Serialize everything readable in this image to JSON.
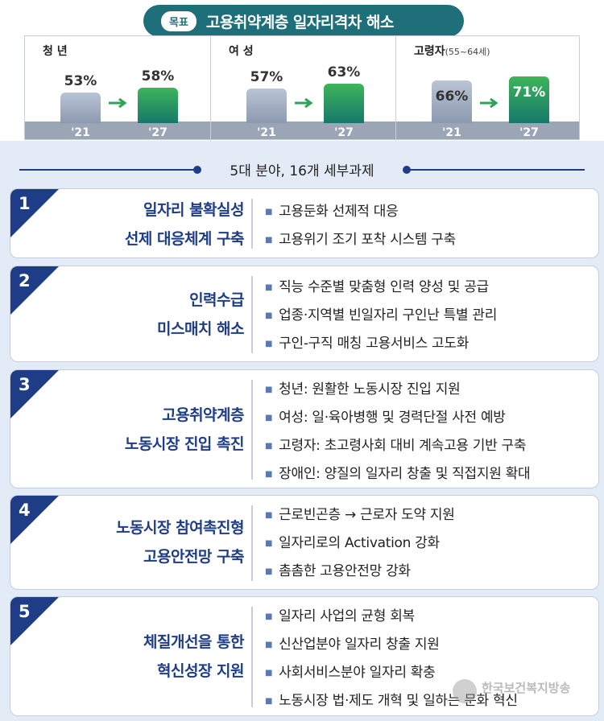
{
  "goal": {
    "tag": "목표",
    "title": "고용취약계층 일자리격차 해소"
  },
  "stats": [
    {
      "label": "청 년",
      "sublabel": "",
      "old_pct": "53%",
      "new_pct": "58%",
      "old_value": 53,
      "new_value": 58,
      "old_year": "'21",
      "new_year": "'27"
    },
    {
      "label": "여 성",
      "sublabel": "",
      "old_pct": "57%",
      "new_pct": "63%",
      "old_value": 57,
      "new_value": 63,
      "old_year": "'21",
      "new_year": "'27"
    },
    {
      "label": "고령자",
      "sublabel": "(55~64세)",
      "old_pct": "66%",
      "new_pct": "71%",
      "old_value": 66,
      "new_value": 71,
      "old_year": "'21",
      "new_year": "'27"
    }
  ],
  "subtitle": "5대 분야, 16개 세부과제",
  "cards": [
    {
      "num": "1",
      "title_lines": [
        "일자리 불확실성",
        "선제 대응체계 구축"
      ],
      "items": [
        "고용둔화 선제적 대응",
        "고용위기 조기 포착 시스템 구축"
      ]
    },
    {
      "num": "2",
      "title_lines": [
        "인력수급",
        "미스매치 해소"
      ],
      "items": [
        "직능 수준별 맞춤형 인력 양성 및 공급",
        "업종·지역별 빈일자리 구인난 특별 관리",
        "구인-구직 매칭 고용서비스 고도화"
      ]
    },
    {
      "num": "3",
      "title_lines": [
        "고용취약계층",
        "노동시장 진입 촉진"
      ],
      "items": [
        "청년: 원활한 노동시장 진입 지원",
        "여성: 일·육아병행 및 경력단절 사전 예방",
        "고령자: 초고령사회 대비 계속고용 기반 구축",
        "장애인: 양질의 일자리 창출 및 직접지원 확대"
      ]
    },
    {
      "num": "4",
      "title_lines": [
        "노동시장 참여촉진형",
        "고용안전망 구축"
      ],
      "items": [
        "근로빈곤층 → 근로자 도약 지원",
        "일자리로의 Activation 강화",
        "촘촘한 고용안전망 강화"
      ]
    },
    {
      "num": "5",
      "title_lines": [
        "체질개선을 통한",
        "혁신성장 지원"
      ],
      "items": [
        "일자리 사업의 균형 회복",
        "신산업분야 일자리 창출 지원",
        "사회서비스분야 일자리 확충",
        "노동시장 법·제도 개혁 및 일하는 문화 혁신"
      ]
    }
  ],
  "watermark": {
    "text": "한국보건복지방송"
  },
  "colors": {
    "navy": "#1e3d86",
    "teal": "#1f6f7a",
    "green": "#2ea35a",
    "grey_bar": "#9aa6b5"
  }
}
